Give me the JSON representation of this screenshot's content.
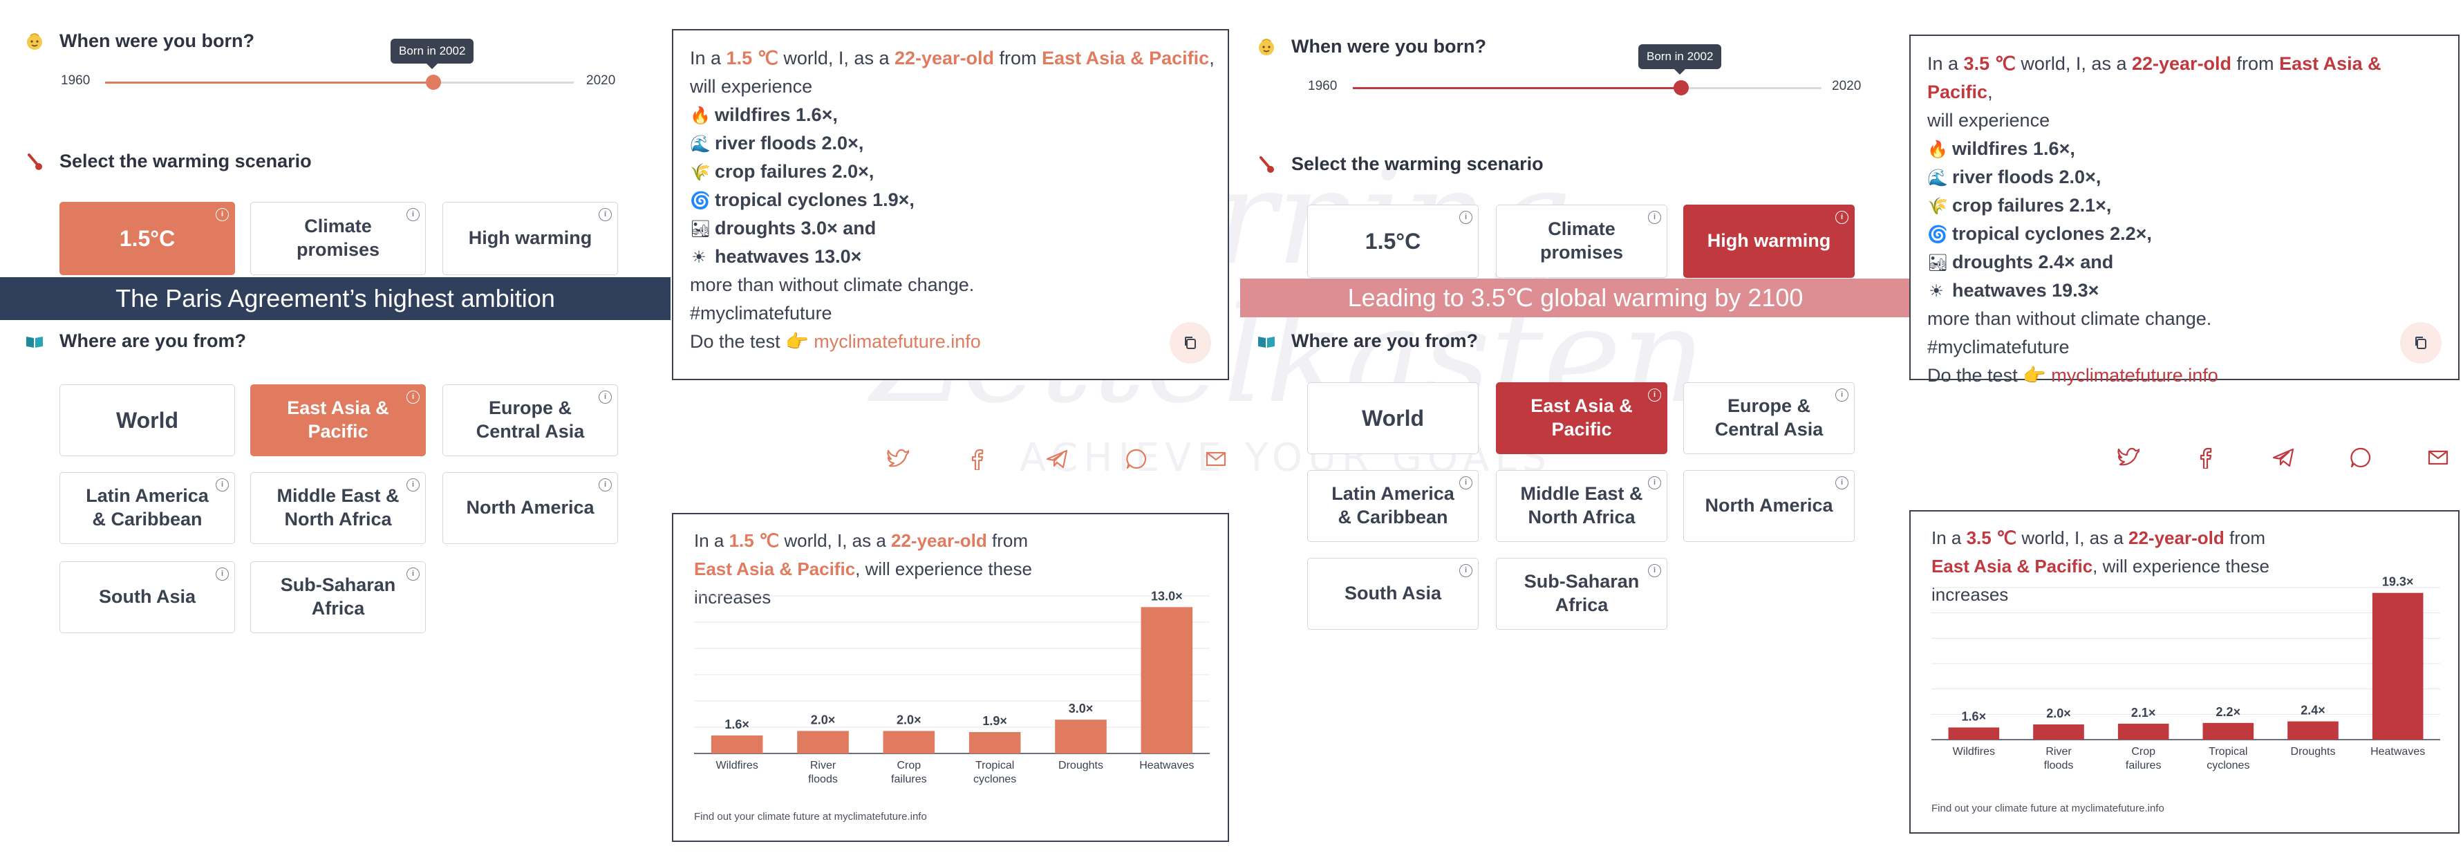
{
  "watermark": {
    "line1": "Morning",
    "line2": "Zettelkasten",
    "tagline": "ACHIEVE YOUR GOALS"
  },
  "panels": [
    {
      "accent": "#e07b5f",
      "born": {
        "title": "When were you born?",
        "min_label": "1960",
        "max_label": "2020",
        "tooltip": "Born in 2002",
        "min": 1960,
        "max": 2020,
        "value": 2002
      },
      "scenario": {
        "title": "Select the warming scenario",
        "options": [
          {
            "label": "1.5°C",
            "selected": true
          },
          {
            "label": "Climate promises",
            "selected": false
          },
          {
            "label": "High warming",
            "selected": false
          }
        ],
        "banner": "The Paris Agreement’s highest ambition",
        "banner_color": "#2f3f5c"
      },
      "region": {
        "title": "Where are you from?",
        "options": [
          {
            "label": "World",
            "selected": false
          },
          {
            "label": "East Asia & Pacific",
            "selected": true
          },
          {
            "label": "Europe & Central Asia",
            "selected": false
          },
          {
            "label": "Latin America & Caribbean",
            "selected": false
          },
          {
            "label": "Middle East & North Africa",
            "selected": false
          },
          {
            "label": "North America",
            "selected": false
          },
          {
            "label": "South Asia",
            "selected": false
          },
          {
            "label": "Sub-Saharan Africa",
            "selected": false
          }
        ]
      },
      "text_card": {
        "intro_a": "In a ",
        "temp": "1.5 ℃",
        "intro_b": " world, I, as a ",
        "age": "22-year-old",
        "intro_c": " from ",
        "region": "East Asia & Pacific",
        "intro_d": ",",
        "line2": "will experience",
        "items": [
          {
            "icon": "fire-icon",
            "glyph": "🔥",
            "text": "wildfires 1.6×,"
          },
          {
            "icon": "wave-icon",
            "glyph": "🌊",
            "text": "river floods 2.0×,"
          },
          {
            "icon": "crop-icon",
            "glyph": "🌾",
            "text": "crop failures 2.0×,"
          },
          {
            "icon": "cyclone-icon",
            "glyph": "🌀",
            "text": "tropical cyclones 1.9×,"
          },
          {
            "icon": "drought-icon",
            "glyph": "🏜",
            "text": "droughts 3.0× and"
          },
          {
            "icon": "sun-icon",
            "glyph": "☀",
            "text": "heatwaves 13.0×"
          }
        ],
        "outro": "more than without climate change.",
        "hashtag": "#myclimatefuture",
        "cta": "Do the test 👉 ",
        "link": "myclimatefuture.info"
      },
      "share_icons": [
        "twitter-icon",
        "facebook-icon",
        "telegram-icon",
        "whatsapp-icon",
        "mail-icon"
      ],
      "chart_card": {
        "head_a": "In a ",
        "temp": "1.5 ℃",
        "head_b": " world, I, as a ",
        "age": "22-year-old",
        "head_c": " from",
        "region": "East Asia & Pacific",
        "head_d": ", will experience these",
        "head_e": "increases",
        "footer": "Find out your climate future at myclimatefuture.info"
      },
      "chart_data": {
        "type": "bar",
        "categories": [
          "Wildfires",
          "River floods",
          "Crop failures",
          "Tropical cyclones",
          "Droughts",
          "Heatwaves"
        ],
        "category_lines": [
          [
            "Wildfires"
          ],
          [
            "River",
            "floods"
          ],
          [
            "Crop",
            "failures"
          ],
          [
            "Tropical",
            "cyclones"
          ],
          [
            "Droughts"
          ],
          [
            "Heatwaves"
          ]
        ],
        "values": [
          1.6,
          2.0,
          2.0,
          1.9,
          3.0,
          13.0
        ],
        "labels": [
          "1.6×",
          "2.0×",
          "2.0×",
          "1.9×",
          "3.0×",
          "13.0×"
        ],
        "ylim": [
          0,
          14
        ],
        "grid": true,
        "color": "#e07b5f"
      }
    },
    {
      "accent": "#c0393f",
      "born": {
        "title": "When were you born?",
        "min_label": "1960",
        "max_label": "2020",
        "tooltip": "Born in 2002",
        "min": 1960,
        "max": 2020,
        "value": 2002
      },
      "scenario": {
        "title": "Select the warming scenario",
        "options": [
          {
            "label": "1.5°C",
            "selected": false
          },
          {
            "label": "Climate promises",
            "selected": false
          },
          {
            "label": "High warming",
            "selected": true
          }
        ],
        "banner": "Leading to 3.5℃ global warming by 2100",
        "banner_color": "#dd8e93"
      },
      "region": {
        "title": "Where are you from?",
        "options": [
          {
            "label": "World",
            "selected": false
          },
          {
            "label": "East Asia & Pacific",
            "selected": true
          },
          {
            "label": "Europe & Central Asia",
            "selected": false
          },
          {
            "label": "Latin America & Caribbean",
            "selected": false
          },
          {
            "label": "Middle East & North Africa",
            "selected": false
          },
          {
            "label": "North America",
            "selected": false
          },
          {
            "label": "South Asia",
            "selected": false
          },
          {
            "label": "Sub-Saharan Africa",
            "selected": false
          }
        ]
      },
      "text_card": {
        "intro_a": "In a ",
        "temp": "3.5 ℃",
        "intro_b": " world, I, as a ",
        "age": "22-year-old",
        "intro_c": " from ",
        "region": "East Asia & Pacific",
        "intro_d": ",",
        "line2": "will experience",
        "items": [
          {
            "icon": "fire-icon",
            "glyph": "🔥",
            "text": "wildfires 1.6×,"
          },
          {
            "icon": "wave-icon",
            "glyph": "🌊",
            "text": "river floods 2.0×,"
          },
          {
            "icon": "crop-icon",
            "glyph": "🌾",
            "text": "crop failures 2.1×,"
          },
          {
            "icon": "cyclone-icon",
            "glyph": "🌀",
            "text": "tropical cyclones 2.2×,"
          },
          {
            "icon": "drought-icon",
            "glyph": "🏜",
            "text": "droughts 2.4× and"
          },
          {
            "icon": "sun-icon",
            "glyph": "☀",
            "text": "heatwaves 19.3×"
          }
        ],
        "outro": "more than without climate change.",
        "hashtag": "#myclimatefuture",
        "cta": "Do the test 👉 ",
        "link": "myclimatefuture.info"
      },
      "share_icons": [
        "twitter-icon",
        "facebook-icon",
        "telegram-icon",
        "whatsapp-icon",
        "mail-icon"
      ],
      "chart_card": {
        "head_a": "In a ",
        "temp": "3.5 ℃",
        "head_b": " world, I, as a ",
        "age": "22-year-old",
        "head_c": " from",
        "region": "East Asia & Pacific",
        "head_d": ", will experience these",
        "head_e": "increases",
        "footer": "Find out your climate future at myclimatefuture.info"
      },
      "chart_data": {
        "type": "bar",
        "categories": [
          "Wildfires",
          "River floods",
          "Crop failures",
          "Tropical cyclones",
          "Droughts",
          "Heatwaves"
        ],
        "category_lines": [
          [
            "Wildfires"
          ],
          [
            "River",
            "floods"
          ],
          [
            "Crop",
            "failures"
          ],
          [
            "Tropical",
            "cyclones"
          ],
          [
            "Droughts"
          ],
          [
            "Heatwaves"
          ]
        ],
        "values": [
          1.6,
          2.0,
          2.1,
          2.2,
          2.4,
          19.3
        ],
        "labels": [
          "1.6×",
          "2.0×",
          "2.1×",
          "2.2×",
          "2.4×",
          "19.3×"
        ],
        "ylim": [
          0,
          20
        ],
        "grid": true,
        "color": "#c0393f"
      }
    }
  ]
}
